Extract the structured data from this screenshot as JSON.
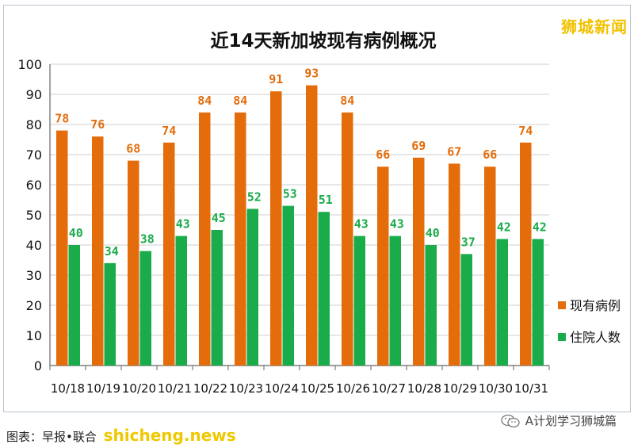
{
  "watermark": "狮城新闻",
  "footer": {
    "source": "图表：早报•联合",
    "site": "shicheng.news",
    "account": "A计划学习狮城篇"
  },
  "colors": {
    "orange": "#e46c0a",
    "green": "#1aab4b"
  },
  "chart_data": {
    "type": "bar",
    "title": "近14天新加坡现有病例概况",
    "xlabel": "",
    "ylabel": "",
    "ylim": [
      0,
      100
    ],
    "yticks": [
      0,
      10,
      20,
      30,
      40,
      50,
      60,
      70,
      80,
      90,
      100
    ],
    "grid": true,
    "legend_position": "right",
    "categories": [
      "10/18",
      "10/19",
      "10/20",
      "10/21",
      "10/22",
      "10/23",
      "10/24",
      "10/25",
      "10/26",
      "10/27",
      "10/28",
      "10/29",
      "10/30",
      "10/31"
    ],
    "series": [
      {
        "name": "现有病例",
        "color": "#e46c0a",
        "values": [
          78,
          76,
          68,
          74,
          84,
          84,
          91,
          93,
          84,
          66,
          69,
          67,
          66,
          74
        ]
      },
      {
        "name": "住院人数",
        "color": "#1aab4b",
        "values": [
          40,
          34,
          38,
          43,
          45,
          52,
          53,
          51,
          43,
          43,
          40,
          37,
          42,
          42
        ]
      }
    ]
  }
}
